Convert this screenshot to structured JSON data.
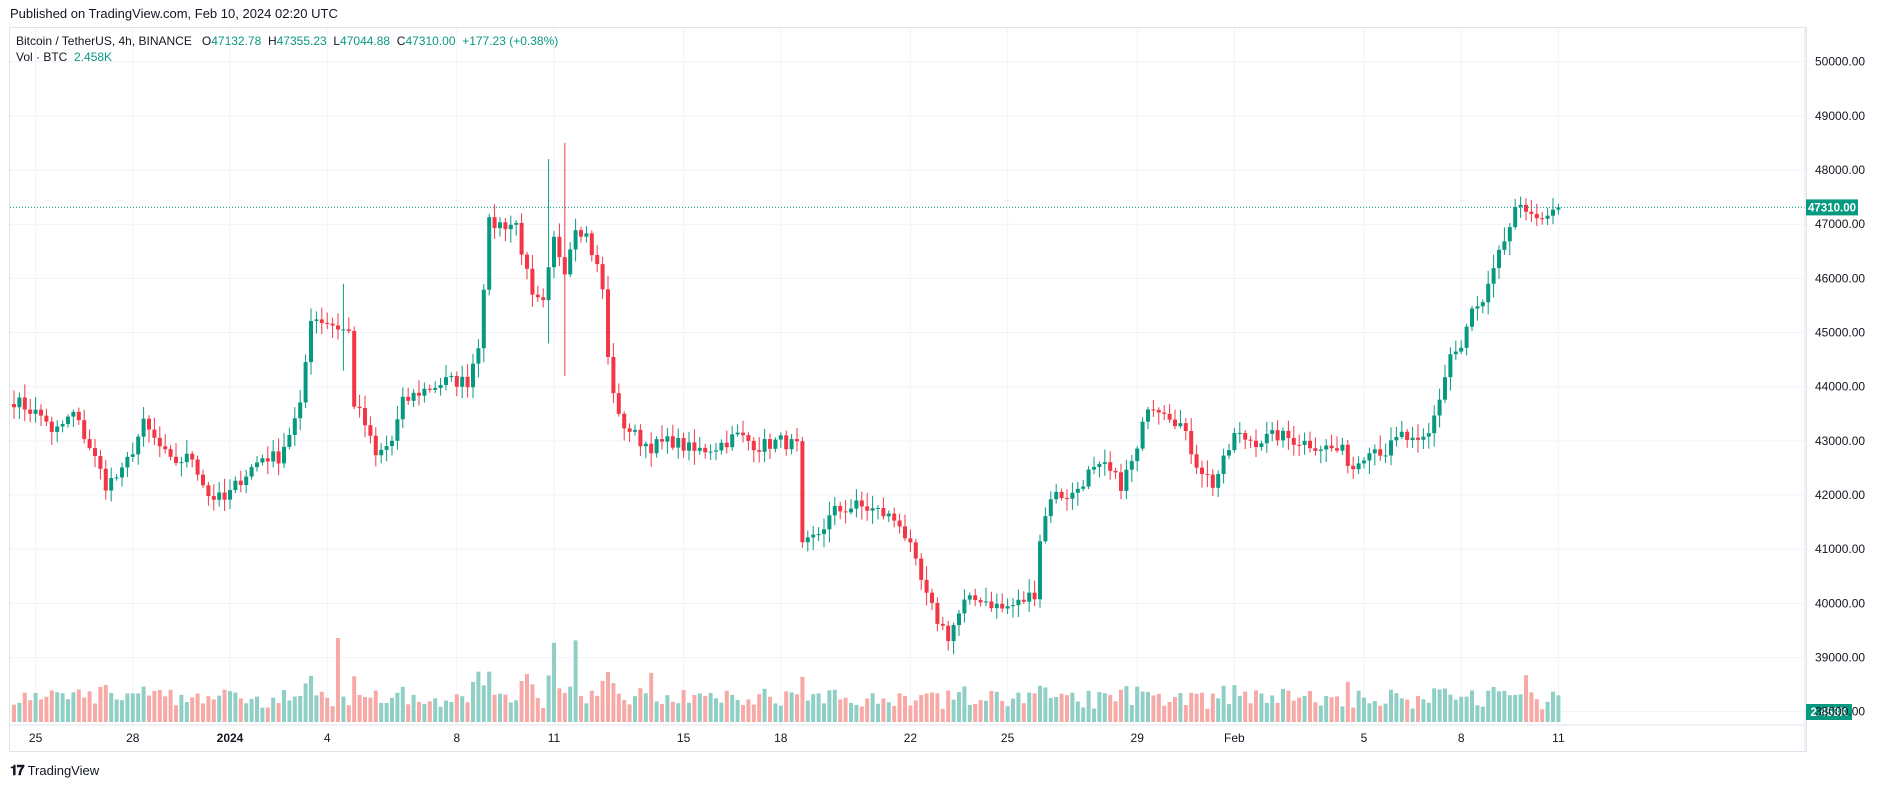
{
  "header": {
    "published": "Published on TradingView.com, Feb 10, 2024 02:20 UTC"
  },
  "legend": {
    "symbol": "Bitcoin / TetherUS, 4h, BINANCE",
    "o_label": "O",
    "o": "47132.78",
    "h_label": "H",
    "h": "47355.23",
    "l_label": "L",
    "l": "47044.88",
    "c_label": "C",
    "c": "47310.00",
    "change": "+177.23 (+0.38%)",
    "vol_label": "Vol · BTC",
    "vol": "2.458K"
  },
  "footer": {
    "brand": "TradingView"
  },
  "colors": {
    "up": "#089981",
    "down": "#f23645",
    "up_vol": "#8fcfc6",
    "down_vol": "#f7a9a6",
    "grid": "#f0f3fa",
    "axis_text": "#131722"
  },
  "chart_data": {
    "type": "candlestick",
    "title": "Bitcoin / TetherUS, 4h, BINANCE",
    "x_tick_labels": [
      "25",
      "28",
      "2024",
      "4",
      "8",
      "11",
      "15",
      "18",
      "22",
      "25",
      "29",
      "Feb",
      "5",
      "8",
      "11"
    ],
    "y_tick_labels": [
      "38000.00",
      "39000.00",
      "40000.00",
      "41000.00",
      "42000.00",
      "43000.00",
      "44000.00",
      "45000.00",
      "46000.00",
      "47000.00",
      "48000.00",
      "49000.00",
      "50000.00"
    ],
    "y_ticks": [
      38000,
      39000,
      40000,
      41000,
      42000,
      43000,
      44000,
      45000,
      46000,
      47000,
      48000,
      49000,
      50000
    ],
    "ylim": [
      37700,
      50400
    ],
    "last_price": 47310.0,
    "last_price_label": "47310.00",
    "last_volume_label": "2.458K",
    "x_ticks": [
      {
        "label": "25",
        "i": 4
      },
      {
        "label": "28",
        "i": 22
      },
      {
        "label": "2024",
        "i": 40
      },
      {
        "label": "4",
        "i": 58
      },
      {
        "label": "8",
        "i": 82
      },
      {
        "label": "11",
        "i": 100
      },
      {
        "label": "15",
        "i": 124
      },
      {
        "label": "18",
        "i": 142
      },
      {
        "label": "22",
        "i": 166
      },
      {
        "label": "25",
        "i": 184
      },
      {
        "label": "29",
        "i": 208
      },
      {
        "label": "Feb",
        "i": 226
      },
      {
        "label": "5",
        "i": 250
      },
      {
        "label": "8",
        "i": 268
      },
      {
        "label": "11",
        "i": 286
      }
    ],
    "anchors": [
      [
        0,
        43750
      ],
      [
        6,
        43400
      ],
      [
        7,
        43100
      ],
      [
        11,
        43500
      ],
      [
        14,
        42900
      ],
      [
        17,
        42200
      ],
      [
        20,
        42400
      ],
      [
        24,
        43300
      ],
      [
        29,
        42600
      ],
      [
        33,
        42700
      ],
      [
        36,
        42000
      ],
      [
        39,
        41900
      ],
      [
        42,
        42300
      ],
      [
        46,
        42700
      ],
      [
        49,
        42700
      ],
      [
        53,
        43600
      ],
      [
        55,
        45300
      ],
      [
        58,
        45200
      ],
      [
        62,
        45000
      ],
      [
        63,
        43700
      ],
      [
        65,
        43300
      ],
      [
        67,
        42700
      ],
      [
        70,
        43000
      ],
      [
        72,
        43700
      ],
      [
        75,
        43900
      ],
      [
        80,
        44100
      ],
      [
        84,
        44100
      ],
      [
        86,
        44800
      ],
      [
        88,
        47000
      ],
      [
        93,
        47000
      ],
      [
        96,
        45600
      ],
      [
        98,
        45500
      ],
      [
        100,
        46700
      ],
      [
        102,
        46200
      ],
      [
        104,
        47000
      ],
      [
        106,
        46800
      ],
      [
        108,
        46200
      ],
      [
        109,
        45800
      ],
      [
        110,
        44500
      ],
      [
        112,
        43400
      ],
      [
        116,
        43000
      ],
      [
        118,
        42900
      ],
      [
        122,
        43000
      ],
      [
        126,
        42800
      ],
      [
        130,
        42900
      ],
      [
        134,
        43100
      ],
      [
        138,
        42900
      ],
      [
        142,
        43000
      ],
      [
        145,
        42900
      ],
      [
        146,
        41000
      ],
      [
        149,
        41300
      ],
      [
        152,
        41700
      ],
      [
        156,
        41800
      ],
      [
        160,
        41700
      ],
      [
        164,
        41500
      ],
      [
        166,
        41000
      ],
      [
        169,
        40100
      ],
      [
        171,
        39700
      ],
      [
        173,
        39400
      ],
      [
        176,
        40000
      ],
      [
        179,
        40100
      ],
      [
        183,
        39900
      ],
      [
        186,
        40000
      ],
      [
        189,
        40200
      ],
      [
        190,
        41200
      ],
      [
        192,
        42000
      ],
      [
        196,
        42000
      ],
      [
        199,
        42400
      ],
      [
        202,
        42500
      ],
      [
        205,
        42200
      ],
      [
        208,
        42800
      ],
      [
        210,
        43700
      ],
      [
        213,
        43600
      ],
      [
        216,
        43300
      ],
      [
        219,
        42600
      ],
      [
        222,
        42200
      ],
      [
        224,
        42600
      ],
      [
        226,
        43100
      ],
      [
        230,
        43000
      ],
      [
        234,
        43100
      ],
      [
        238,
        43000
      ],
      [
        242,
        42900
      ],
      [
        246,
        42800
      ],
      [
        248,
        42500
      ],
      [
        251,
        42900
      ],
      [
        254,
        42800
      ],
      [
        257,
        43100
      ],
      [
        260,
        42900
      ],
      [
        262,
        43100
      ],
      [
        264,
        43800
      ],
      [
        266,
        44600
      ],
      [
        268,
        44700
      ],
      [
        270,
        45400
      ],
      [
        272,
        45500
      ],
      [
        274,
        46100
      ],
      [
        276,
        46700
      ],
      [
        278,
        47200
      ],
      [
        281,
        47300
      ],
      [
        283,
        47000
      ],
      [
        286,
        47310
      ]
    ],
    "spikes": {
      "63": [
        42900,
        43800
      ],
      "99": [
        48200,
        44800
      ],
      "102": [
        48500,
        44200
      ],
      "61": [
        45900,
        44300
      ]
    },
    "tall_volume": {
      "60": 7,
      "104": 6.8,
      "100": 6.6,
      "86": 4.2,
      "95": 4.0,
      "280": 3.9,
      "118": 4.1
    }
  }
}
